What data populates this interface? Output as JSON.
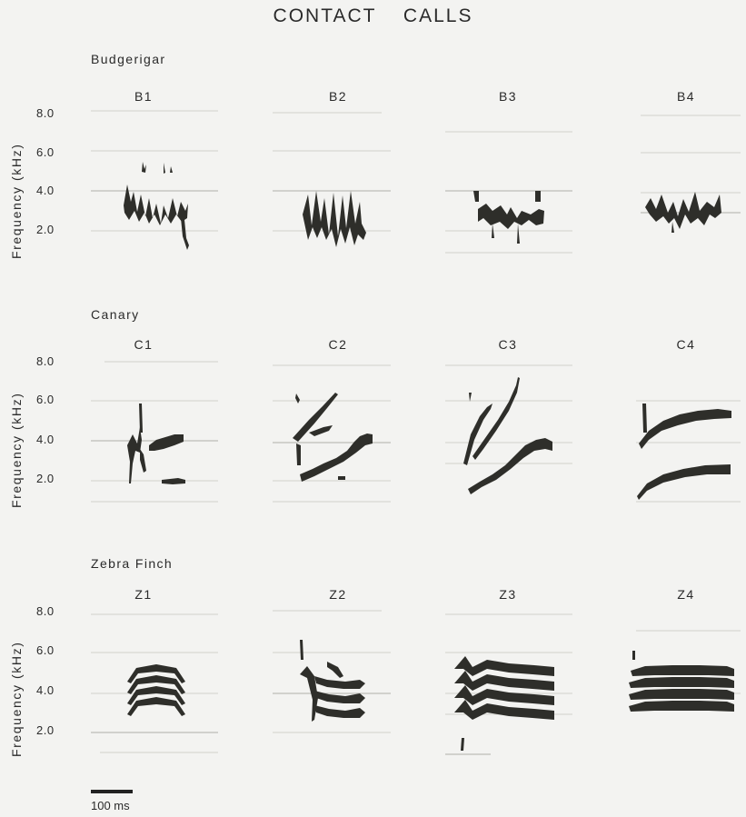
{
  "title": "CONTACT    CALLS",
  "y_axis_label": "Frequency (kHz)",
  "tick_labels": [
    "8.0",
    "6.0",
    "4.0",
    "2.0"
  ],
  "rows": [
    {
      "species": "Budgerigar",
      "panels": [
        {
          "label": "B1",
          "icon": "spectrogram-b1"
        },
        {
          "label": "B2",
          "icon": "spectrogram-b2"
        },
        {
          "label": "B3",
          "icon": "spectrogram-b3"
        },
        {
          "label": "B4",
          "icon": "spectrogram-b4"
        }
      ]
    },
    {
      "species": "Canary",
      "panels": [
        {
          "label": "C1",
          "icon": "spectrogram-c1"
        },
        {
          "label": "C2",
          "icon": "spectrogram-c2"
        },
        {
          "label": "C3",
          "icon": "spectrogram-c3"
        },
        {
          "label": "C4",
          "icon": "spectrogram-c4"
        }
      ]
    },
    {
      "species": "Zebra Finch",
      "panels": [
        {
          "label": "Z1",
          "icon": "spectrogram-z1"
        },
        {
          "label": "Z2",
          "icon": "spectrogram-z2"
        },
        {
          "label": "Z3",
          "icon": "spectrogram-z3"
        },
        {
          "label": "Z4",
          "icon": "spectrogram-z4"
        }
      ]
    }
  ],
  "scale_bar": {
    "label": "100 ms"
  },
  "colors": {
    "ink": "#2e2e2a",
    "paper": "#f3f3f1"
  }
}
